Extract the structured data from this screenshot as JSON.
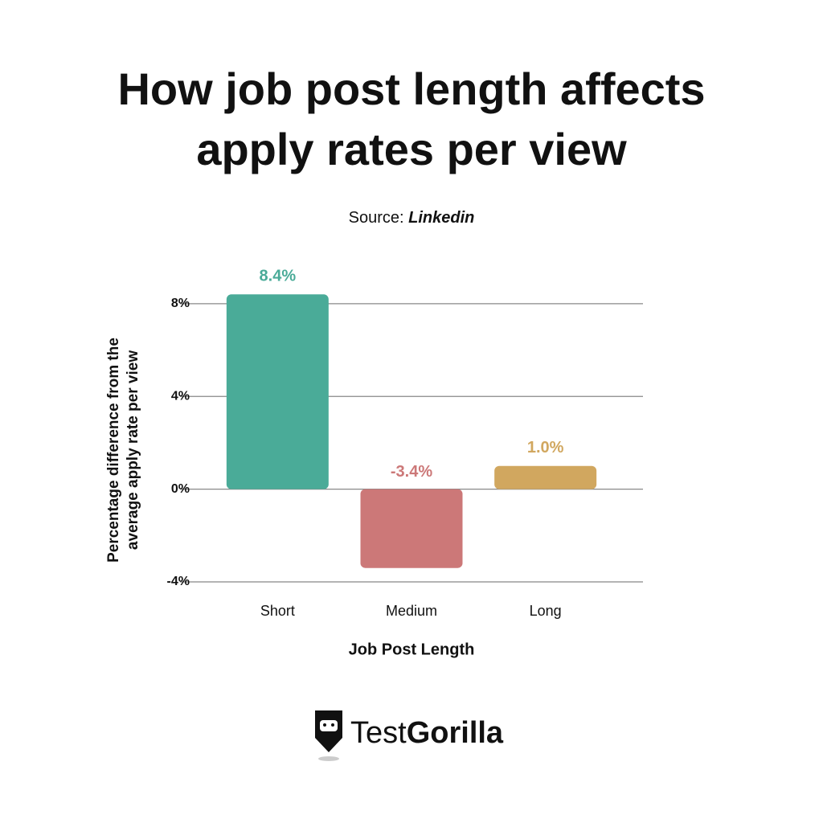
{
  "chart_data": {
    "type": "bar",
    "title": [
      "How job post length affects",
      "apply rates per view"
    ],
    "source_label": "Source:",
    "source": "Linkedin",
    "x_label": "Job Post Length",
    "y_label": [
      "Percentage difference from the",
      "average apply rate per view"
    ],
    "categories": [
      "Short",
      "Medium",
      "Long"
    ],
    "values": [
      8.4,
      -3.4,
      1.0
    ],
    "value_labels": [
      "8.4%",
      "-3.4%",
      "1.0%"
    ],
    "colors": [
      "#4aab98",
      "#cc7878",
      "#d1a75f"
    ],
    "ylim": [
      -4,
      9
    ],
    "yticks": [
      {
        "value": 8,
        "label": "8%"
      },
      {
        "value": 4,
        "label": "4%"
      },
      {
        "value": 0,
        "label": "0%"
      },
      {
        "value": -4,
        "label": "-4%"
      }
    ],
    "grid": true
  },
  "logo": {
    "light": "Test",
    "bold": "Gorilla"
  }
}
